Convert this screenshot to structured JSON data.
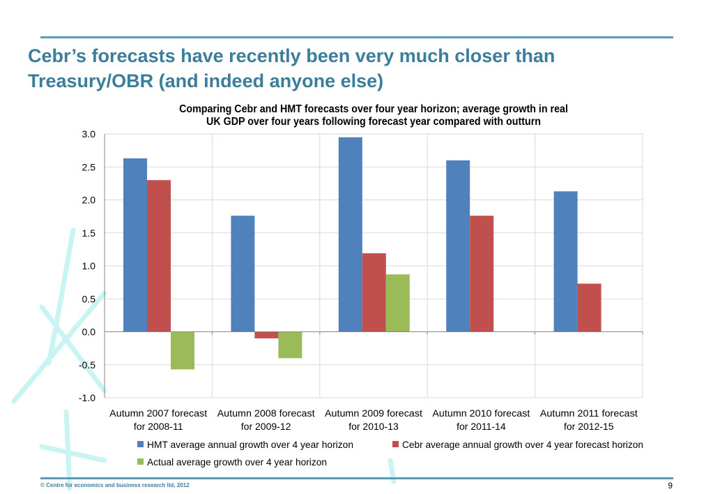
{
  "slide": {
    "title_line1": "Cebr’s forecasts have recently been very much closer than",
    "title_line2": "Treasury/OBR (and indeed anyone else)",
    "footer": "© Centre for economics and business research ltd, 2012",
    "page_number": "9"
  },
  "colors": {
    "accent": "#3c7d9c",
    "rule": "#5b9bb6",
    "hmt": "#4f81bd",
    "cebr": "#c0504d",
    "actual": "#9bbb59",
    "grid": "#d9d9d9",
    "deco": "#c8f4f4"
  },
  "chart_data": {
    "type": "bar",
    "title_line1": "Comparing Cebr and HMT forecasts over four year horizon; average growth in real",
    "title_line2": "UK GDP over four years following forecast year compared with outturn",
    "categories": [
      [
        "Autumn 2007 forecast",
        "for 2008-11"
      ],
      [
        "Autumn 2008 forecast",
        "for 2009-12"
      ],
      [
        "Autumn 2009 forecast",
        "for 2010-13"
      ],
      [
        "Autumn 2010 forecast",
        "for 2011-14"
      ],
      [
        "Autumn 2011 forecast",
        "for 2012-15"
      ]
    ],
    "series": [
      {
        "name": "HMT average annual growth over 4 year horizon",
        "color": "#4f81bd",
        "values": [
          2.63,
          1.76,
          2.95,
          2.6,
          2.13
        ]
      },
      {
        "name": "Cebr average annual growth over 4 year forecast horizon",
        "color": "#c0504d",
        "values": [
          2.3,
          -0.1,
          1.19,
          1.76,
          0.73
        ]
      },
      {
        "name": "Actual average growth over 4 year horizon",
        "color": "#9bbb59",
        "values": [
          -0.57,
          -0.4,
          0.87,
          null,
          null
        ]
      }
    ],
    "ylim": [
      -1.0,
      3.0
    ],
    "yticks": [
      "3.0",
      "2.5",
      "2.0",
      "1.5",
      "1.0",
      "0.5",
      "0.0",
      "-0.5",
      "-1.0"
    ],
    "grid": true,
    "legend_position": "bottom"
  }
}
